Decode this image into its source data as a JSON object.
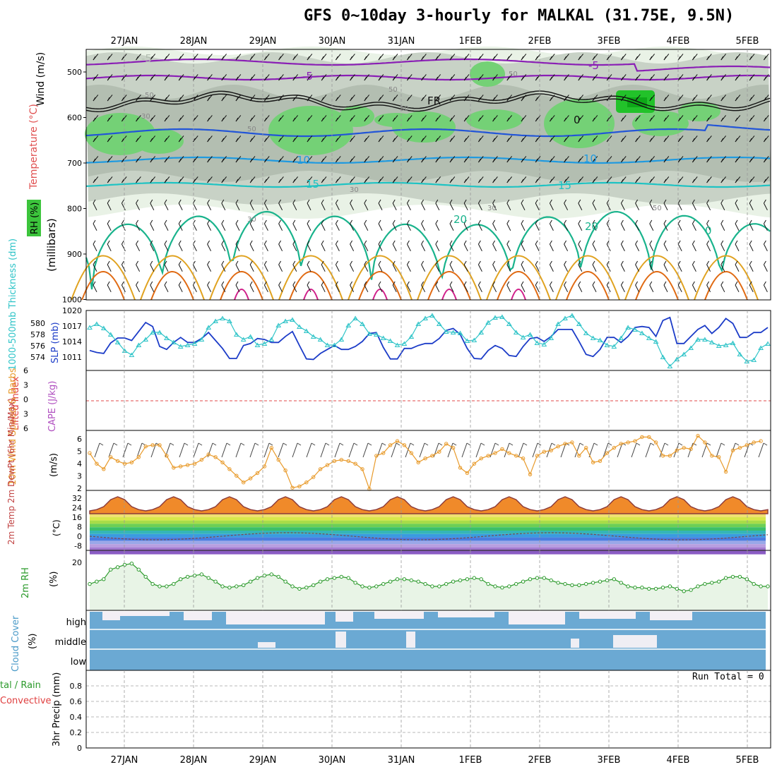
{
  "title": "GFS 0~10day 3-hourly for MALKAL (31.75E, 9.5N)",
  "colors": {
    "rh_light": "#e9f2e6",
    "rh_mid": "#c8d2c6",
    "rh_dark": "#b3beb1",
    "rh_green": "#74d176",
    "rh_bright": "#22c22a",
    "t_purple": "#8a1fb5",
    "t_blue": "#2255d8",
    "t_lightblue": "#1f9ae0",
    "t_cyan": "#1fc3c3",
    "t_teal": "#19b38c",
    "t_orange": "#e0a21f",
    "t_darkorange": "#e06a12",
    "t_magenta": "#d0208a",
    "slp": "#1c3cc8",
    "thickness": "#2fc4c8",
    "wind10": "#e89a2a",
    "temp_curve": "#8a3a3a",
    "rh2m": "#2b9a2b",
    "rh2m_fill": "#e8f4e6",
    "cloud": "#6ba9d3",
    "cloud_clear": "#f3eff5",
    "cape_line": "#e24a4a"
  },
  "date_labels": [
    "27JAN",
    "28JAN",
    "29JAN",
    "30JAN",
    "31JAN",
    "1FEB",
    "2FEB",
    "3FEB",
    "4FEB",
    "5FEB"
  ],
  "panels": {
    "upper": {
      "ylabel_wind": "Wind (m/s)",
      "ylabel_temp": "Temperature (°C)",
      "ylabel_rh": "RH (%)",
      "ylabel_mb": "(millibars)",
      "levels": [
        "500",
        "600",
        "700",
        "800",
        "900",
        "1000"
      ],
      "contour_labels": [
        "-5",
        "-5",
        "FR",
        "-5",
        "10",
        "10",
        "15",
        "15",
        "20",
        "20",
        "0",
        "0",
        "50",
        "50",
        "50",
        "30",
        "30",
        "30",
        "50",
        "50",
        "30",
        "50"
      ]
    },
    "slp": {
      "ylabel_thickness": "1000-500mb Thickness (dm)",
      "ylabel_slp": "SLP (mb)",
      "left_ticks": [
        "580",
        "578",
        "576",
        "574"
      ],
      "right_ticks": [
        "1020",
        "1017",
        "1014",
        "1011"
      ]
    },
    "li": {
      "ylabel_li": "Lifted Index",
      "ylabel_cape": "CAPE (J/kg)",
      "ticks": [
        "6",
        "3",
        "0",
        "3",
        "6"
      ]
    },
    "wind10": {
      "ylabel": "10m Wind Speed & Barbs",
      "unit": "(m/s)",
      "ticks": [
        "6",
        "5",
        "4",
        "3",
        "2"
      ]
    },
    "temp2m": {
      "ylabel": "2m Temp 2m DewPt (6hr Min/Max)",
      "unit": "(°C)",
      "ticks": [
        "32",
        "24",
        "16",
        "8",
        "0",
        "-8"
      ]
    },
    "rh2m": {
      "ylabel": "2m RH",
      "unit": "(%)",
      "ticks": [
        "20"
      ]
    },
    "cloud": {
      "ylabel": "Cloud Cover",
      "unit": "(%)",
      "layers": [
        "high",
        "middle",
        "low"
      ]
    },
    "precip": {
      "ylabel_left": "tal / Rain",
      "ylabel_conv": "Convective",
      "ylabel_axis": "3hr Precip (mm)",
      "ticks": [
        "0.8",
        "0.6",
        "0.4",
        "0.2",
        "0"
      ],
      "run_total": "Run Total = 0"
    }
  },
  "chart_data": [
    {
      "type": "line",
      "name": "SLP",
      "unit": "mb",
      "ylim": [
        1008,
        1020
      ],
      "x_step_hours": 3,
      "values": [
        1012,
        1011.6,
        1011.4,
        1013.5,
        1014.5,
        1014.5,
        1014,
        1015.8,
        1017.6,
        1016.8,
        1012.8,
        1012.2,
        1013.6,
        1014.6,
        1013.6,
        1013.6,
        1014.4,
        1015.6,
        1014,
        1012.4,
        1010.4,
        1010.4,
        1013,
        1013.4,
        1014.4,
        1014.2,
        1013.6,
        1013.6,
        1014.8,
        1015.8,
        1013,
        1010.3,
        1010.2,
        1011.4,
        1012.2,
        1013,
        1012.2,
        1012.2,
        1012.8,
        1013.8,
        1015.4,
        1015.6,
        1012.6,
        1010.3,
        1010.3,
        1012.4,
        1012.4,
        1013,
        1013.4,
        1013.4,
        1014.4,
        1016,
        1016.4,
        1015.2,
        1012.4,
        1010.4,
        1010.3,
        1012,
        1013,
        1012.4,
        1011,
        1010.8,
        1012.8,
        1014.4,
        1014.6,
        1013.8,
        1014.8,
        1016.2,
        1016.2,
        1016.2,
        1013.8,
        1011.2,
        1010.8,
        1012.2,
        1014.6,
        1014.6,
        1013.6,
        1014.8,
        1016.6,
        1016.8,
        1016.6,
        1014.8,
        1018,
        1018.6,
        1013.4,
        1013.4,
        1014.8,
        1016.2,
        1017,
        1015.4,
        1016.6,
        1018.4,
        1017.4,
        1014.6,
        1014.6,
        1015.6,
        1015.6,
        1016.6
      ]
    },
    {
      "type": "line",
      "name": "1000-500mb Thickness",
      "unit": "dm",
      "ylim": [
        573,
        581.5
      ],
      "x_step_hours": 3,
      "values": [
        579.1,
        579.6,
        579,
        578.1,
        577,
        575.8,
        575.2,
        576.6,
        577.4,
        578.4,
        578.4,
        577.6,
        577,
        576.4,
        576.6,
        576.8,
        577.4,
        579.1,
        580,
        580.4,
        580,
        578.1,
        577.4,
        577.8,
        576.6,
        576.8,
        577.4,
        579.4,
        580,
        580.2,
        579.2,
        578.6,
        577.8,
        577.4,
        576.6,
        576.6,
        577.4,
        579.4,
        580.4,
        579.6,
        578.2,
        578.1,
        577.6,
        577.2,
        576.6,
        576.8,
        577.8,
        579.6,
        580.4,
        580.8,
        579.6,
        578.5,
        578.4,
        578.3,
        577.2,
        577.3,
        578.4,
        579.8,
        580.5,
        580.6,
        579.6,
        578.4,
        577.7,
        578.1,
        576.9,
        576.7,
        577.6,
        579.6,
        580.4,
        580.8,
        579.6,
        578.3,
        577.6,
        577.3,
        576.6,
        576.4,
        577.6,
        579.1,
        578.8,
        578.3,
        577.6,
        577.1,
        574.9,
        573.6,
        574.6,
        575.3,
        576.2,
        577.4,
        577.4,
        577,
        576.5,
        576.6,
        576.9,
        575.3,
        574.3,
        574.5,
        576.2,
        576.8
      ]
    },
    {
      "type": "line",
      "name": "10m Wind Speed",
      "unit": "m/s",
      "ylim": [
        2,
        6.5
      ],
      "x_step_hours": 3,
      "values": [
        4.8,
        4,
        3.6,
        4.5,
        4.2,
        4,
        4.1,
        4.5,
        5.3,
        5.4,
        5.4,
        4.6,
        3.7,
        3.8,
        3.9,
        4,
        4.3,
        4.7,
        4.5,
        4.1,
        3.6,
        3.1,
        2.6,
        2.9,
        3.3,
        3.8,
        5.2,
        4.3,
        3.5,
        2.2,
        2.3,
        2.6,
        3,
        3.6,
        3.9,
        4.2,
        4.3,
        4.2,
        4,
        3.6,
        2.1,
        4.6,
        4.8,
        5.4,
        5.7,
        5.4,
        4.8,
        4.1,
        4.4,
        4.6,
        4.9,
        5.5,
        5.2,
        3.7,
        3.3,
        4,
        4.4,
        4.6,
        4.8,
        5.1,
        4.8,
        4.6,
        4.4,
        3.2,
        4.6,
        4.9,
        5,
        5.3,
        5.5,
        5.6,
        4.6,
        5.2,
        4.1,
        4.2,
        4.8,
        5.2,
        5.5,
        5.6,
        5.7,
        6,
        6,
        5.6,
        4.6,
        4.6,
        5,
        5.2,
        5.1,
        6.1,
        5.6,
        4.6,
        4.5,
        3.4,
        5,
        5.2,
        5.4,
        5.6,
        5.7
      ]
    },
    {
      "type": "line",
      "name": "2m RH",
      "unit": "%",
      "ylim": [
        0,
        25
      ],
      "x_step_hours": 3,
      "values": [
        11,
        12,
        13,
        17,
        18,
        19,
        19.5,
        17,
        14,
        11,
        10,
        10,
        11,
        13,
        14,
        14.5,
        15,
        13.5,
        12,
        10,
        9.5,
        10,
        10.5,
        12,
        13.5,
        14.5,
        15,
        14,
        12,
        10,
        9,
        9.5,
        10.5,
        12,
        13,
        13.5,
        14,
        13.5,
        11.5,
        10,
        9.5,
        10,
        11,
        12,
        13,
        13,
        12.5,
        12,
        11,
        10,
        10,
        11,
        12,
        12.5,
        13,
        13.5,
        13,
        11,
        10,
        9.5,
        10,
        11,
        12,
        13,
        13.5,
        13.5,
        12.5,
        11.5,
        11,
        10.5,
        10.5,
        11,
        11.5,
        12,
        12.5,
        13,
        11.5,
        10,
        9.5,
        9.5,
        9,
        9,
        9.5,
        10,
        9,
        8,
        8.5,
        10,
        11,
        11.5,
        12,
        13.5,
        14,
        14,
        13,
        11,
        10,
        10
      ]
    },
    {
      "type": "line",
      "name": "3hr Precip",
      "unit": "mm",
      "ylim": [
        0,
        1
      ],
      "values": [
        0
      ]
    }
  ]
}
